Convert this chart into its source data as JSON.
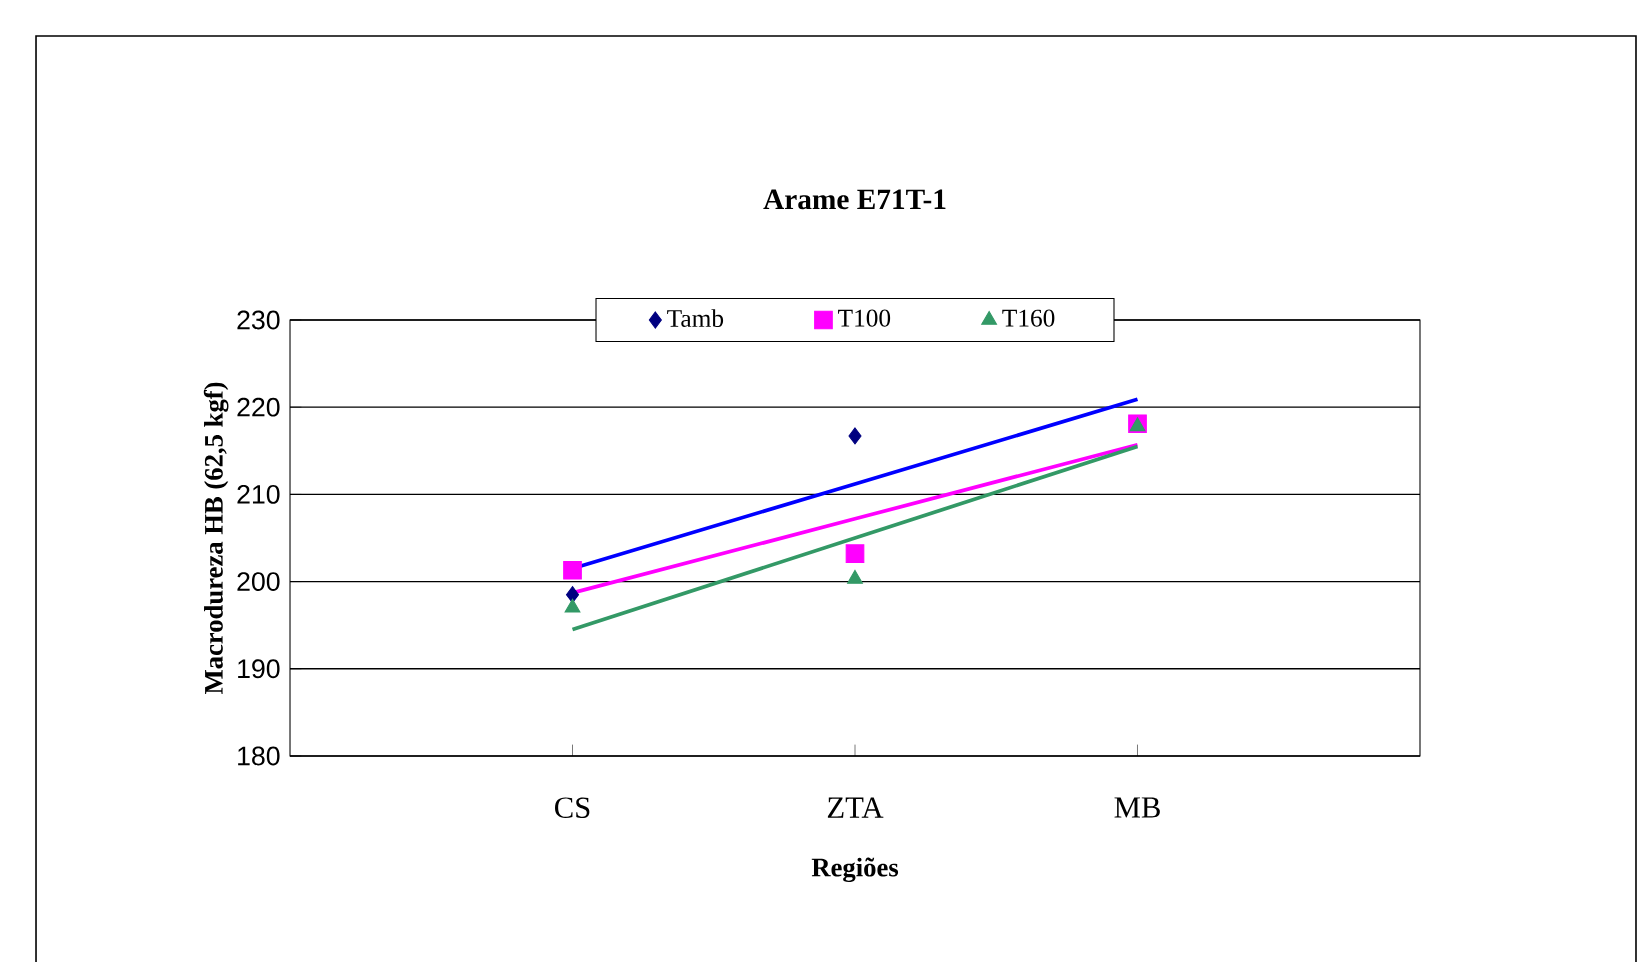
{
  "chart_data": {
    "type": "scatter",
    "title": "Arame E71T-1",
    "xlabel": "Regiões",
    "ylabel": "Macrodureza HB (62,5 kgf)",
    "categories": [
      "CS",
      "ZTA",
      "MB"
    ],
    "series": [
      {
        "name": "Tamb",
        "color": "#000080",
        "marker": "diamond",
        "values": [
          198.5,
          216.7,
          null
        ]
      },
      {
        "name": "T100",
        "color": "#ff00ff",
        "marker": "square",
        "values": [
          201.3,
          203.2,
          218.1
        ]
      },
      {
        "name": "T160",
        "color": "#339966",
        "marker": "triangle",
        "values": [
          197.0,
          200.3,
          217.8
        ]
      },
      {
        "type": "line",
        "color": "#0000ff",
        "marker": "none",
        "values": [
          201.5,
          211.2,
          220.9
        ]
      },
      {
        "type": "line",
        "color": "#ff00ff",
        "marker": "none",
        "values": [
          198.7,
          207.2,
          215.7
        ]
      },
      {
        "type": "line",
        "color": "#339966",
        "marker": "none",
        "values": [
          194.5,
          205.0,
          215.5
        ]
      }
    ],
    "ylim": [
      180,
      230
    ],
    "yticks": [
      180,
      190,
      200,
      210,
      220,
      230
    ],
    "grid": "y",
    "legend": "top"
  }
}
